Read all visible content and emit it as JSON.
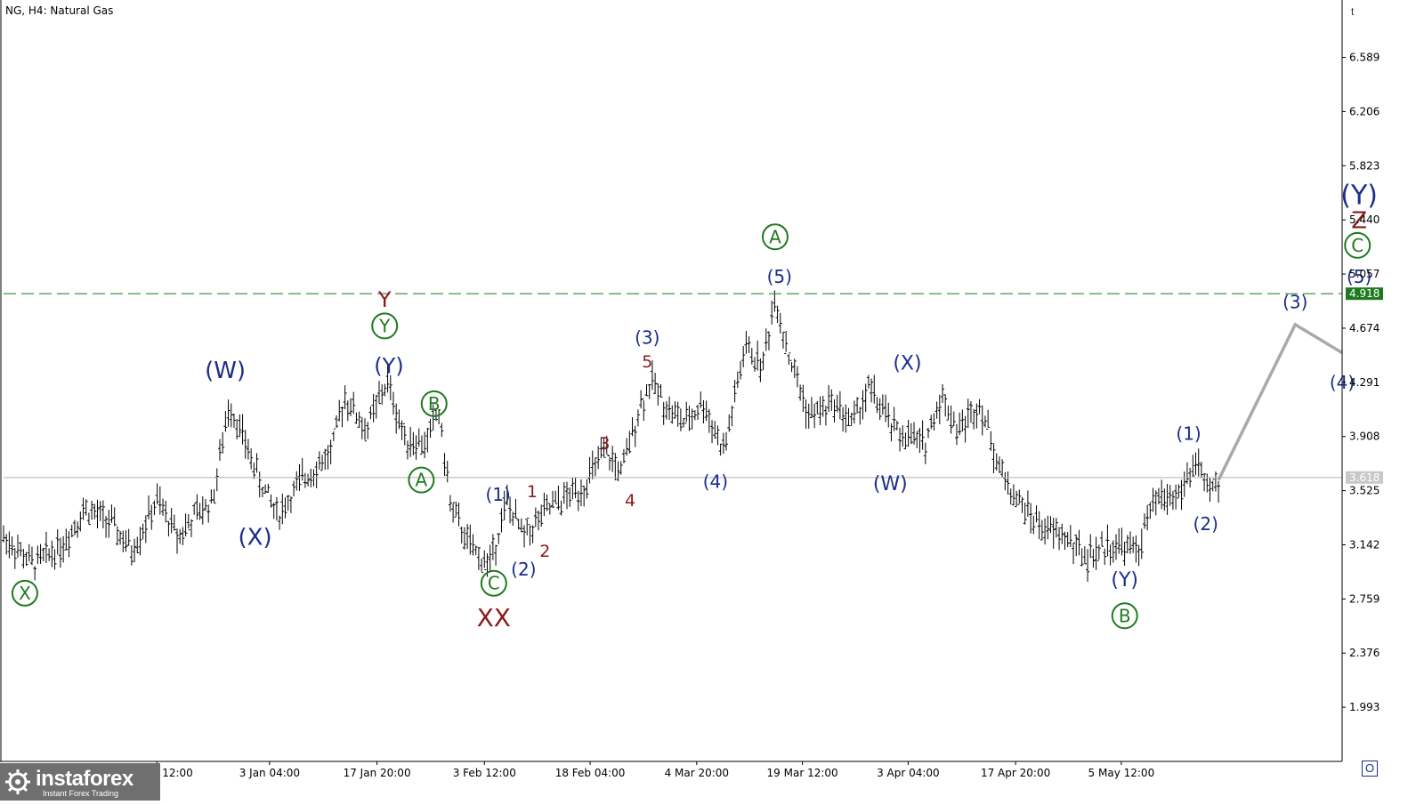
{
  "header": {
    "title": "NG, H4:  Natural Gas"
  },
  "logo": {
    "brand": "instaforex",
    "tagline": "Instant Forex Trading"
  },
  "toolbar": {
    "corner_icon": "t",
    "corner_button": "O"
  },
  "colors": {
    "price_bar": "#000000",
    "projection": "#a9a9a9",
    "level_line": "#2e8b2e",
    "current_line": "#b0b0b0",
    "wave_blue": "#1b2e8a",
    "wave_red": "#8b1a1a",
    "wave_green": "#1f7a1f",
    "level_tag_bg": "#1f7a1f"
  },
  "chart_data": {
    "type": "line",
    "title": "NG, H4:  Natural Gas",
    "xlabel": "",
    "ylabel": "",
    "ylim": [
      1.61,
      6.97
    ],
    "y_ticks": [
      "6.589",
      "6.206",
      "5.823",
      "5.440",
      "5.057",
      "4.674",
      "4.291",
      "3.908",
      "3.525",
      "3.142",
      "2.759",
      "2.376",
      "1.993"
    ],
    "y_tick_values": [
      6.589,
      6.206,
      5.823,
      5.44,
      5.057,
      4.674,
      4.291,
      3.908,
      3.525,
      3.142,
      2.759,
      2.376,
      1.993
    ],
    "x_ticks": [
      "26 Dec 12:00",
      "3 Jan 04:00",
      "17 Jan 20:00",
      "3 Feb 12:00",
      "18 Feb 04:00",
      "4 Mar 20:00",
      "19 Mar 12:00",
      "3 Apr 04:00",
      "17 Apr 20:00",
      "5 May 12:00"
    ],
    "x_tick_pos": [
      0.3,
      1.62,
      2.88,
      4.14,
      5.38,
      6.63,
      7.87,
      9.11,
      10.37,
      11.61
    ],
    "x_range": [
      -1.5,
      14.2
    ],
    "grid": false,
    "price_series": {
      "name": "NG",
      "anchors": [
        [
          -1.5,
          3.2
        ],
        [
          -1.15,
          3.0
        ],
        [
          -0.8,
          3.15
        ],
        [
          -0.55,
          3.4
        ],
        [
          -0.25,
          3.3
        ],
        [
          0.0,
          3.1
        ],
        [
          0.3,
          3.45
        ],
        [
          0.55,
          3.2
        ],
        [
          0.75,
          3.35
        ],
        [
          0.95,
          3.45
        ],
        [
          1.15,
          4.15
        ],
        [
          1.5,
          3.6
        ],
        [
          1.72,
          3.35
        ],
        [
          2.0,
          3.6
        ],
        [
          2.35,
          3.8
        ],
        [
          2.5,
          4.2
        ],
        [
          2.75,
          3.95
        ],
        [
          3.0,
          4.3
        ],
        [
          3.2,
          3.9
        ],
        [
          3.45,
          3.85
        ],
        [
          3.6,
          4.1
        ],
        [
          3.75,
          3.4
        ],
        [
          4.0,
          3.1
        ],
        [
          4.2,
          3.0
        ],
        [
          4.4,
          3.45
        ],
        [
          4.6,
          3.2
        ],
        [
          4.9,
          3.4
        ],
        [
          5.3,
          3.55
        ],
        [
          5.55,
          3.8
        ],
        [
          5.75,
          3.65
        ],
        [
          5.95,
          4.1
        ],
        [
          6.1,
          4.3
        ],
        [
          6.3,
          4.1
        ],
        [
          6.5,
          4.0
        ],
        [
          6.7,
          4.15
        ],
        [
          6.95,
          3.8
        ],
        [
          7.2,
          4.55
        ],
        [
          7.4,
          4.4
        ],
        [
          7.55,
          4.9
        ],
        [
          7.7,
          4.5
        ],
        [
          7.95,
          4.05
        ],
        [
          8.25,
          4.15
        ],
        [
          8.45,
          4.0
        ],
        [
          8.65,
          4.25
        ],
        [
          8.95,
          3.95
        ],
        [
          9.3,
          3.85
        ],
        [
          9.5,
          4.2
        ],
        [
          9.7,
          3.95
        ],
        [
          9.95,
          4.15
        ],
        [
          10.2,
          3.65
        ],
        [
          10.4,
          3.45
        ],
        [
          10.7,
          3.25
        ],
        [
          10.95,
          3.2
        ],
        [
          11.2,
          3.05
        ],
        [
          11.5,
          3.15
        ],
        [
          11.8,
          3.1
        ],
        [
          12.0,
          3.45
        ],
        [
          12.3,
          3.5
        ],
        [
          12.5,
          3.75
        ],
        [
          12.6,
          3.5
        ],
        [
          12.75,
          3.58
        ]
      ]
    },
    "projection": {
      "points": [
        [
          12.75,
          3.6
        ],
        [
          13.65,
          4.7
        ],
        [
          14.2,
          4.5
        ],
        [
          14.4,
          4.92
        ],
        [
          15.3,
          4.38
        ]
      ]
    },
    "levels": [
      {
        "value": 4.918,
        "label": "4.918",
        "style": "dashed"
      },
      {
        "value": 3.618,
        "label": "3.618",
        "style": "solid"
      }
    ],
    "annotations": [
      {
        "text": "X",
        "x": -1.25,
        "y": 2.8,
        "color": "green",
        "circled": true
      },
      {
        "text": "(W)",
        "x": 1.1,
        "y": 4.38,
        "color": "blue",
        "size": 26
      },
      {
        "text": "(X)",
        "x": 1.45,
        "y": 3.2,
        "color": "blue",
        "size": 26
      },
      {
        "text": "Y",
        "x": 2.97,
        "y": 4.88,
        "color": "red",
        "size": 24
      },
      {
        "text": "Y",
        "x": 2.97,
        "y": 4.69,
        "color": "green",
        "circled": true
      },
      {
        "text": "(Y)",
        "x": 3.02,
        "y": 4.41,
        "color": "blue",
        "size": 24
      },
      {
        "text": "B",
        "x": 3.55,
        "y": 4.14,
        "color": "green",
        "circled": true
      },
      {
        "text": "A",
        "x": 3.4,
        "y": 3.6,
        "color": "green",
        "circled": true
      },
      {
        "text": "C",
        "x": 4.25,
        "y": 2.87,
        "color": "green",
        "circled": true
      },
      {
        "text": "XX",
        "x": 4.25,
        "y": 2.63,
        "color": "red",
        "size": 28
      },
      {
        "text": "(1)",
        "x": 4.3,
        "y": 3.5,
        "color": "blue",
        "size": 20
      },
      {
        "text": "(2)",
        "x": 4.6,
        "y": 2.97,
        "color": "blue",
        "size": 20
      },
      {
        "text": "1",
        "x": 4.7,
        "y": 3.52,
        "color": "red",
        "size": 19
      },
      {
        "text": "2",
        "x": 4.85,
        "y": 3.1,
        "color": "red",
        "size": 19
      },
      {
        "text": "3",
        "x": 5.55,
        "y": 3.86,
        "color": "red",
        "size": 19
      },
      {
        "text": "4",
        "x": 5.85,
        "y": 3.46,
        "color": "red",
        "size": 19
      },
      {
        "text": "5",
        "x": 6.05,
        "y": 4.44,
        "color": "red",
        "size": 19
      },
      {
        "text": "(3)",
        "x": 6.05,
        "y": 4.61,
        "color": "blue",
        "size": 20
      },
      {
        "text": "(4)",
        "x": 6.85,
        "y": 3.59,
        "color": "blue",
        "size": 20
      },
      {
        "text": "A",
        "x": 7.55,
        "y": 5.32,
        "color": "green",
        "circled": true
      },
      {
        "text": "(5)",
        "x": 7.6,
        "y": 5.04,
        "color": "blue",
        "size": 20
      },
      {
        "text": "(X)",
        "x": 9.1,
        "y": 4.43,
        "color": "blue",
        "size": 22
      },
      {
        "text": "(W)",
        "x": 8.9,
        "y": 3.58,
        "color": "blue",
        "size": 22
      },
      {
        "text": "(1)",
        "x": 12.4,
        "y": 3.93,
        "color": "blue",
        "size": 20
      },
      {
        "text": "(2)",
        "x": 12.6,
        "y": 3.29,
        "color": "blue",
        "size": 20
      },
      {
        "text": "(Y)",
        "x": 11.65,
        "y": 2.9,
        "color": "blue",
        "size": 22
      },
      {
        "text": "B",
        "x": 11.65,
        "y": 2.64,
        "color": "green",
        "circled": true
      },
      {
        "text": "(3)",
        "x": 13.65,
        "y": 4.86,
        "color": "blue",
        "size": 20
      },
      {
        "text": "(4)",
        "x": 14.2,
        "y": 4.29,
        "color": "blue",
        "size": 20
      },
      {
        "text": "(5)",
        "x": 14.4,
        "y": 5.04,
        "color": "blue",
        "size": 20
      },
      {
        "text": "C",
        "x": 14.38,
        "y": 5.26,
        "color": "green",
        "circled": true
      },
      {
        "text": "Z",
        "x": 14.4,
        "y": 5.44,
        "color": "red",
        "size": 26
      },
      {
        "text": "(Y)",
        "x": 14.4,
        "y": 5.62,
        "color": "blue",
        "size": 30
      }
    ]
  }
}
